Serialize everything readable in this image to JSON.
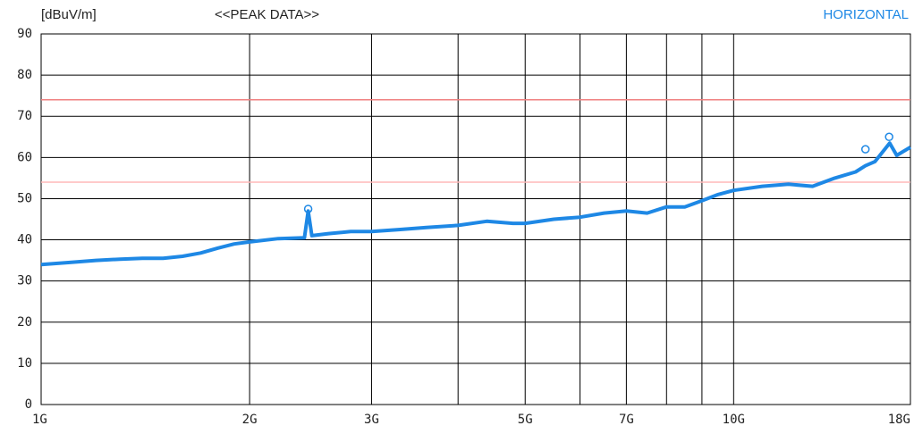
{
  "chart_data": {
    "type": "line",
    "unit_label": "[dBuV/m]",
    "title": "<<PEAK DATA>>",
    "polarization": "HORIZONTAL",
    "xlog": true,
    "xlim": [
      1,
      18
    ],
    "ylim": [
      0,
      90
    ],
    "xticks": [
      {
        "value": 1,
        "label": "1G"
      },
      {
        "value": 2,
        "label": "2G"
      },
      {
        "value": 3,
        "label": "3G"
      },
      {
        "value": 5,
        "label": "5G"
      },
      {
        "value": 7,
        "label": "7G"
      },
      {
        "value": 10,
        "label": "10G"
      },
      {
        "value": 18,
        "label": "18G"
      }
    ],
    "xminor": [
      4,
      6,
      8,
      9
    ],
    "yticks": [
      0,
      10,
      20,
      30,
      40,
      50,
      60,
      70,
      80,
      90
    ],
    "grid": true,
    "limits": [
      {
        "value": 74,
        "color": "#f08080"
      },
      {
        "value": 54,
        "color": "#ffb8b8"
      }
    ],
    "series": [
      {
        "color": "#1e88e5",
        "x": [
          1.0,
          1.1,
          1.2,
          1.3,
          1.4,
          1.5,
          1.6,
          1.7,
          1.8,
          1.9,
          2.0,
          2.2,
          2.4,
          2.43,
          2.46,
          2.6,
          2.8,
          3.0,
          3.3,
          3.6,
          4.0,
          4.4,
          4.8,
          5.0,
          5.5,
          6.0,
          6.5,
          7.0,
          7.5,
          8.0,
          8.5,
          9.0,
          9.5,
          10,
          11,
          12,
          13,
          14,
          15,
          15.5,
          16,
          16.8,
          17.2,
          18
        ],
        "values": [
          34,
          34.5,
          35,
          35.3,
          35.5,
          35.5,
          36,
          36.8,
          38,
          39,
          39.5,
          40.3,
          40.5,
          47,
          41,
          41.5,
          42,
          42,
          42.5,
          43,
          43.5,
          44.5,
          44,
          44,
          45,
          45.5,
          46.5,
          47,
          46.5,
          48,
          48,
          49.5,
          51,
          52,
          53,
          53.5,
          53,
          55,
          56.5,
          58,
          59,
          63.5,
          60.5,
          62.5
        ]
      },
      {
        "color": "#1e88e5",
        "marker": "circle",
        "x": [
          2.43,
          15.5,
          16.77
        ],
        "values": [
          47.5,
          62,
          65
        ]
      }
    ]
  }
}
